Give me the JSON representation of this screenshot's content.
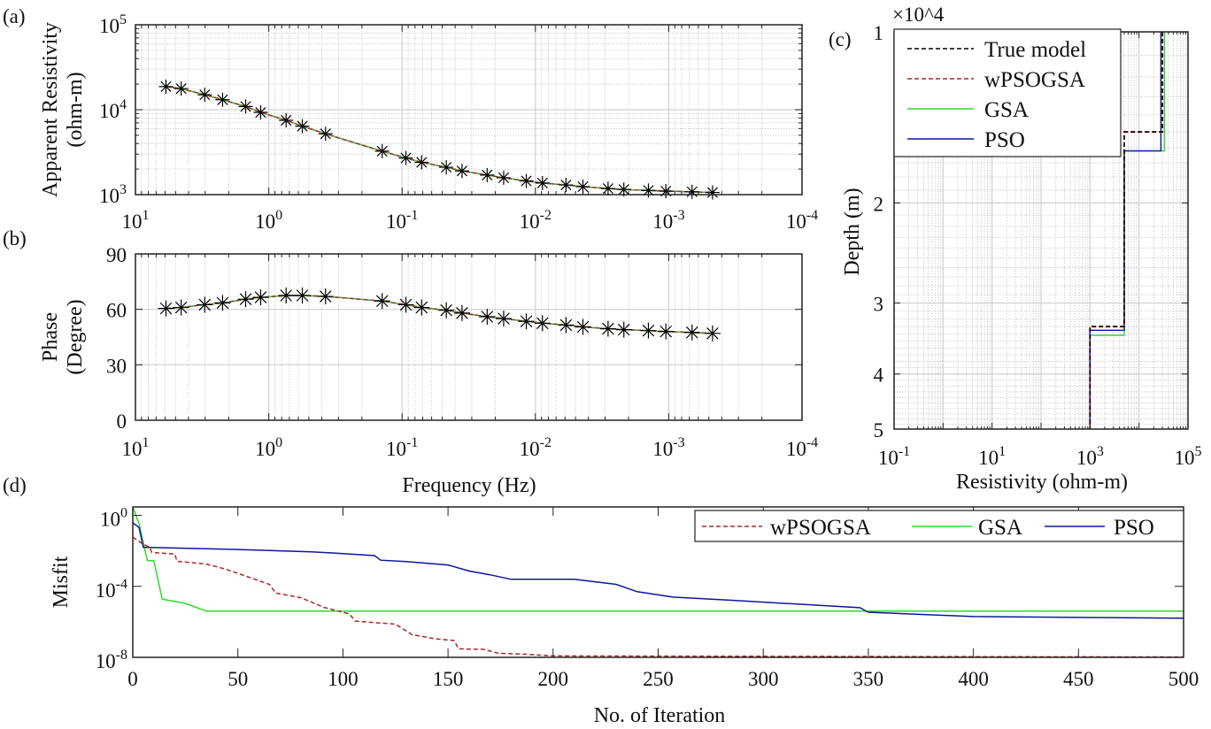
{
  "colors": {
    "true_model": "#000000",
    "wPSOGSA": "#b0262a",
    "GSA": "#2ed82e",
    "PSO": "#0b179c",
    "marker": "#000000",
    "grid_major": "#d0d0d0",
    "grid_minor": "#c8c8c8"
  },
  "chart_data": [
    {
      "panel": "(a)",
      "type": "line",
      "xscale": "log",
      "yscale": "log",
      "x_reversed": true,
      "xlim": [
        0.0001,
        10
      ],
      "ylim": [
        1000,
        100000
      ],
      "xlabel": "",
      "ylabel": [
        "Apparent Resistivity",
        "(ohm-m)"
      ],
      "xticks": [
        "10^1",
        "10^0",
        "10^-1",
        "10^-2",
        "10^-3",
        "10^-4"
      ],
      "yticks": [
        "10^3",
        "10^4",
        "10^5"
      ],
      "grid": true,
      "markers": "asterisk",
      "x": [
        5.9,
        4.54,
        3.02,
        2.22,
        1.49,
        1.15,
        0.741,
        0.56,
        0.375,
        0.141,
        0.0936,
        0.0713,
        0.0466,
        0.0355,
        0.023,
        0.0173,
        0.0117,
        0.00885,
        0.00589,
        0.0044,
        0.00285,
        0.00217,
        0.00142,
        0.00105,
        0.000668,
        0.000469
      ],
      "values": [
        18700,
        17700,
        15000,
        13100,
        10900,
        9300,
        7500,
        6400,
        5200,
        3250,
        2700,
        2400,
        2100,
        1900,
        1700,
        1580,
        1450,
        1370,
        1300,
        1240,
        1180,
        1150,
        1120,
        1100,
        1080,
        1060
      ]
    },
    {
      "panel": "(b)",
      "type": "line",
      "xscale": "log",
      "yscale": "linear",
      "x_reversed": true,
      "xlim": [
        0.0001,
        10
      ],
      "ylim": [
        0,
        90
      ],
      "xlabel": "Frequency (Hz)",
      "ylabel": [
        "Phase",
        "(Degree)"
      ],
      "xticks": [
        "10^1",
        "10^0",
        "10^-1",
        "10^-2",
        "10^-3",
        "10^-4"
      ],
      "yticks": [
        "0",
        "30",
        "60",
        "90"
      ],
      "grid": true,
      "markers": "asterisk",
      "x": [
        5.9,
        4.54,
        3.02,
        2.22,
        1.49,
        1.15,
        0.741,
        0.56,
        0.375,
        0.141,
        0.0936,
        0.0713,
        0.0466,
        0.0355,
        0.023,
        0.0173,
        0.0117,
        0.00885,
        0.00589,
        0.0044,
        0.00285,
        0.00217,
        0.00142,
        0.00105,
        0.000668,
        0.000469
      ],
      "values": [
        60.5,
        61,
        62.5,
        63.5,
        65.5,
        66.5,
        67.5,
        67.5,
        67,
        64.5,
        62.5,
        61,
        59.5,
        58,
        56,
        55,
        53.5,
        52.5,
        51.5,
        50.5,
        49.5,
        49,
        48.5,
        48,
        47.5,
        47
      ]
    },
    {
      "panel": "(c)",
      "type": "line",
      "xscale": "log",
      "yscale": "log",
      "y_reversed": true,
      "xlim": [
        0.1,
        100000
      ],
      "ylim": [
        10000,
        50000
      ],
      "xlabel": "Resistivity (ohm-m)",
      "ylabel": "Depth (m)",
      "y_multiplier": "×10^4",
      "xticks": [
        "10^-1",
        "10^1",
        "10^3",
        "10^5"
      ],
      "yticks": [
        "1",
        "2",
        "3",
        "4",
        "5"
      ],
      "grid": true,
      "legend": "top-left",
      "series": [
        {
          "name": "True model",
          "style": "dashed",
          "resistivity": [
            30000,
            5000,
            1000
          ],
          "boundaries": [
            15000,
            33000
          ]
        },
        {
          "name": "wPSOGSA",
          "style": "dashed",
          "resistivity": [
            30000,
            5000,
            1000
          ],
          "boundaries": [
            15000,
            33000
          ]
        },
        {
          "name": "GSA",
          "style": "solid",
          "resistivity": [
            33000,
            5000,
            1000
          ],
          "boundaries": [
            16200,
            34200
          ]
        },
        {
          "name": "PSO",
          "style": "solid",
          "resistivity": [
            28000,
            5000,
            1000
          ],
          "boundaries": [
            16200,
            33500
          ]
        }
      ]
    },
    {
      "panel": "(d)",
      "type": "line",
      "xscale": "linear",
      "yscale": "log",
      "xlim": [
        0,
        500
      ],
      "ylim": [
        1e-08,
        3
      ],
      "xlabel": "No. of Iteration",
      "ylabel": "Misfit",
      "xticks": [
        "0",
        "50",
        "100",
        "150",
        "200",
        "250",
        "300",
        "350",
        "400",
        "450",
        "500"
      ],
      "yticks": [
        "10^0",
        "10^-4",
        "10^-8"
      ],
      "grid": false,
      "legend": "top-right",
      "series": [
        {
          "name": "wPSOGSA",
          "style": "dashed",
          "x": [
            0,
            4,
            8,
            9,
            20,
            21,
            35,
            44,
            57,
            65,
            68,
            80,
            91,
            103,
            106,
            125,
            133,
            144,
            153,
            155,
            167,
            174,
            187,
            200,
            500
          ],
          "values": [
            0.06,
            0.028,
            0.016,
            0.0083,
            0.0066,
            0.0026,
            0.0018,
            0.00095,
            0.00028,
            0.00013,
            4.2e-05,
            2.3e-05,
            6.6e-06,
            2.8e-06,
            1.1e-06,
            7.4e-07,
            1.9e-07,
            1.1e-07,
            8.9e-08,
            3e-08,
            2.8e-08,
            1.7e-08,
            1.5e-08,
            1.2e-08,
            1.05e-08
          ]
        },
        {
          "name": "GSA",
          "style": "solid",
          "x": [
            0,
            3,
            5,
            7,
            10,
            12,
            14,
            25,
            35,
            500
          ],
          "values": [
            3.2,
            0.34,
            0.028,
            0.0028,
            0.0028,
            0.00023,
            1.9e-05,
            1.1e-05,
            4e-06,
            4e-06
          ]
        },
        {
          "name": "PSO",
          "style": "solid",
          "x": [
            0,
            3,
            5,
            50,
            85,
            100,
            115,
            118,
            130,
            150,
            160,
            170,
            180,
            210,
            230,
            240,
            257,
            287,
            316,
            346,
            350,
            400,
            500
          ],
          "values": [
            0.38,
            0.21,
            0.016,
            0.012,
            0.0089,
            0.0071,
            0.0054,
            0.003,
            0.0025,
            0.0016,
            0.00074,
            0.00045,
            0.00025,
            0.00025,
            0.00013,
            5e-05,
            2.5e-05,
            1.6e-05,
            1e-05,
            6.3e-06,
            3.5e-06,
            2e-06,
            1.6e-06
          ]
        }
      ]
    }
  ]
}
